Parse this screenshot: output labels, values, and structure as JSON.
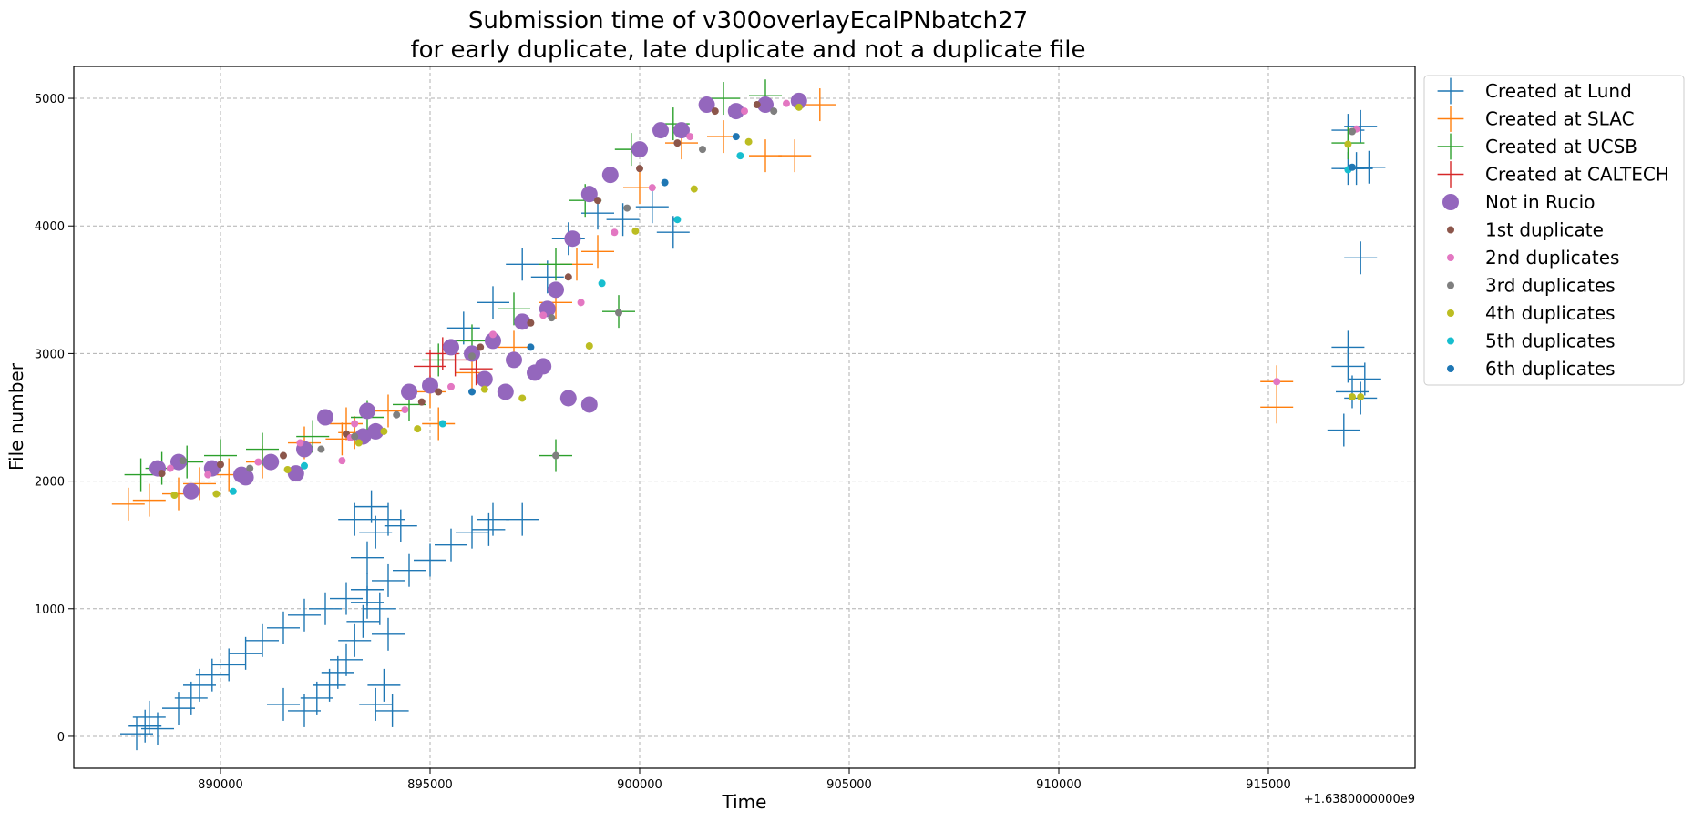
{
  "chart_data": {
    "type": "scatter",
    "title": "Submission time of v300overlayEcalPNbatch27\nfor early duplicate, late duplicate and not a duplicate file",
    "xlabel": "Time",
    "ylabel": "File number",
    "x_offset_label": "+1.6380000000e9",
    "xlim": [
      886500,
      918500
    ],
    "ylim": [
      -250,
      5250
    ],
    "x_ticks": [
      890000,
      895000,
      900000,
      905000,
      910000,
      915000
    ],
    "y_ticks": [
      0,
      1000,
      2000,
      3000,
      4000,
      5000
    ],
    "grid": true,
    "legend_position": "outside-right-top",
    "series": [
      {
        "name": "Created at Lund",
        "marker": "plus",
        "color": "#1f77b4",
        "points": [
          [
            888000,
            20
          ],
          [
            888200,
            80
          ],
          [
            888300,
            150
          ],
          [
            888500,
            60
          ],
          [
            889000,
            220
          ],
          [
            889300,
            300
          ],
          [
            889500,
            400
          ],
          [
            889800,
            480
          ],
          [
            890200,
            560
          ],
          [
            890600,
            650
          ],
          [
            891000,
            750
          ],
          [
            891500,
            850
          ],
          [
            892000,
            950
          ],
          [
            892500,
            1000
          ],
          [
            893000,
            1080
          ],
          [
            893500,
            1150
          ],
          [
            894000,
            1220
          ],
          [
            894500,
            1300
          ],
          [
            895000,
            1380
          ],
          [
            895500,
            1500
          ],
          [
            896000,
            1600
          ],
          [
            896500,
            1700
          ],
          [
            897200,
            1700
          ],
          [
            896400,
            1620
          ],
          [
            891500,
            250
          ],
          [
            892000,
            200
          ],
          [
            892300,
            300
          ],
          [
            892600,
            400
          ],
          [
            892800,
            500
          ],
          [
            893000,
            600
          ],
          [
            893200,
            750
          ],
          [
            893400,
            900
          ],
          [
            893500,
            1050
          ],
          [
            893800,
            1000
          ],
          [
            894000,
            800
          ],
          [
            893900,
            400
          ],
          [
            893700,
            250
          ],
          [
            894100,
            200
          ],
          [
            893200,
            1700
          ],
          [
            893700,
            1600
          ],
          [
            894000,
            1700
          ],
          [
            894300,
            1650
          ],
          [
            893500,
            1400
          ],
          [
            893600,
            1800
          ],
          [
            895800,
            3200
          ],
          [
            896500,
            3400
          ],
          [
            897200,
            3700
          ],
          [
            897800,
            3600
          ],
          [
            898300,
            3900
          ],
          [
            899000,
            4100
          ],
          [
            899600,
            4050
          ],
          [
            900300,
            4150
          ],
          [
            900800,
            3950
          ],
          [
            916900,
            4450
          ],
          [
            917100,
            4450
          ],
          [
            917400,
            4460
          ],
          [
            917200,
            4780
          ],
          [
            916900,
            4750
          ],
          [
            917200,
            3750
          ],
          [
            916900,
            3050
          ],
          [
            917000,
            2700
          ],
          [
            917200,
            2650
          ],
          [
            916800,
            2400
          ],
          [
            916900,
            2900
          ],
          [
            917300,
            2800
          ]
        ]
      },
      {
        "name": "Created at SLAC",
        "marker": "plus",
        "color": "#ff7f0e",
        "points": [
          [
            887800,
            1820
          ],
          [
            888300,
            1850
          ],
          [
            889000,
            1900
          ],
          [
            889500,
            1980
          ],
          [
            890200,
            2050
          ],
          [
            891000,
            2150
          ],
          [
            892000,
            2300
          ],
          [
            893000,
            2450
          ],
          [
            894000,
            2550
          ],
          [
            895000,
            2700
          ],
          [
            896000,
            2850
          ],
          [
            897000,
            3050
          ],
          [
            898000,
            3400
          ],
          [
            898500,
            3700
          ],
          [
            899000,
            3800
          ],
          [
            900000,
            4300
          ],
          [
            901000,
            4650
          ],
          [
            902000,
            4700
          ],
          [
            903000,
            4550
          ],
          [
            903700,
            4550
          ],
          [
            904300,
            4950
          ],
          [
            892900,
            2330
          ],
          [
            893200,
            2380
          ],
          [
            895200,
            2450
          ],
          [
            915200,
            2780
          ],
          [
            915200,
            2580
          ]
        ]
      },
      {
        "name": "Created at UCSB",
        "marker": "plus",
        "color": "#2ca02c",
        "points": [
          [
            888100,
            2050
          ],
          [
            888600,
            2100
          ],
          [
            889200,
            2150
          ],
          [
            890000,
            2200
          ],
          [
            891000,
            2250
          ],
          [
            892200,
            2350
          ],
          [
            893500,
            2500
          ],
          [
            894500,
            2600
          ],
          [
            895200,
            2950
          ],
          [
            896000,
            3100
          ],
          [
            897000,
            3350
          ],
          [
            898000,
            3700
          ],
          [
            898700,
            4200
          ],
          [
            899800,
            4600
          ],
          [
            900800,
            4800
          ],
          [
            902000,
            5000
          ],
          [
            903000,
            5020
          ],
          [
            898000,
            2200
          ],
          [
            899500,
            3330
          ],
          [
            916900,
            4650
          ]
        ]
      },
      {
        "name": "Created at CALTECH",
        "marker": "plus",
        "color": "#d62728",
        "points": [
          [
            895000,
            2900
          ],
          [
            895600,
            2950
          ],
          [
            896100,
            2880
          ],
          [
            895300,
            3000
          ]
        ]
      },
      {
        "name": "Not in Rucio",
        "marker": "circle-large",
        "color": "#9467bd",
        "points": [
          [
            888500,
            2100
          ],
          [
            889000,
            2150
          ],
          [
            889800,
            2100
          ],
          [
            890500,
            2050
          ],
          [
            891200,
            2150
          ],
          [
            892000,
            2250
          ],
          [
            892500,
            2500
          ],
          [
            893500,
            2550
          ],
          [
            894500,
            2700
          ],
          [
            895000,
            2750
          ],
          [
            895500,
            3050
          ],
          [
            896000,
            3000
          ],
          [
            896500,
            3100
          ],
          [
            897200,
            3250
          ],
          [
            897800,
            3350
          ],
          [
            898000,
            3500
          ],
          [
            898400,
            3900
          ],
          [
            898800,
            4250
          ],
          [
            899300,
            4400
          ],
          [
            900000,
            4600
          ],
          [
            900500,
            4750
          ],
          [
            901000,
            4750
          ],
          [
            901600,
            4950
          ],
          [
            902300,
            4900
          ],
          [
            903000,
            4950
          ],
          [
            903800,
            4980
          ],
          [
            896300,
            2800
          ],
          [
            896800,
            2700
          ],
          [
            897500,
            2850
          ],
          [
            898300,
            2650
          ],
          [
            898800,
            2600
          ],
          [
            897700,
            2900
          ],
          [
            897000,
            2950
          ],
          [
            893700,
            2390
          ],
          [
            893400,
            2350
          ],
          [
            889300,
            1920
          ],
          [
            890600,
            2030
          ],
          [
            891800,
            2060
          ]
        ]
      },
      {
        "name": "1st duplicate",
        "marker": "dot",
        "color": "#8c564b",
        "points": [
          [
            888600,
            2060
          ],
          [
            890000,
            2130
          ],
          [
            891500,
            2200
          ],
          [
            893000,
            2370
          ],
          [
            894800,
            2620
          ],
          [
            896200,
            3050
          ],
          [
            897400,
            3240
          ],
          [
            898300,
            3600
          ],
          [
            899000,
            4200
          ],
          [
            900000,
            4450
          ],
          [
            900900,
            4650
          ],
          [
            901800,
            4900
          ],
          [
            902800,
            4950
          ],
          [
            895200,
            2700
          ]
        ]
      },
      {
        "name": "2nd duplicates",
        "marker": "dot",
        "color": "#e377c2",
        "points": [
          [
            888800,
            2100
          ],
          [
            889700,
            2050
          ],
          [
            890900,
            2150
          ],
          [
            891900,
            2300
          ],
          [
            893200,
            2450
          ],
          [
            894400,
            2560
          ],
          [
            895500,
            2740
          ],
          [
            896500,
            3150
          ],
          [
            897700,
            3300
          ],
          [
            898600,
            3400
          ],
          [
            899400,
            3950
          ],
          [
            900300,
            4300
          ],
          [
            901200,
            4700
          ],
          [
            902500,
            4900
          ],
          [
            903500,
            4960
          ],
          [
            893100,
            2340
          ],
          [
            892900,
            2160
          ],
          [
            917100,
            4760
          ],
          [
            915200,
            2780
          ]
        ]
      },
      {
        "name": "3rd duplicates",
        "marker": "dot",
        "color": "#7f7f7f",
        "points": [
          [
            889100,
            2160
          ],
          [
            890700,
            2100
          ],
          [
            892400,
            2250
          ],
          [
            894200,
            2520
          ],
          [
            896000,
            2980
          ],
          [
            897900,
            3280
          ],
          [
            899700,
            4140
          ],
          [
            901500,
            4600
          ],
          [
            903200,
            4900
          ],
          [
            898000,
            2200
          ],
          [
            899500,
            3320
          ],
          [
            893200,
            2350
          ],
          [
            917000,
            4740
          ]
        ]
      },
      {
        "name": "4th duplicates",
        "marker": "dot",
        "color": "#bcbd22",
        "points": [
          [
            888900,
            1890
          ],
          [
            889900,
            1900
          ],
          [
            891600,
            2090
          ],
          [
            893300,
            2300
          ],
          [
            894700,
            2410
          ],
          [
            896300,
            2720
          ],
          [
            897200,
            2650
          ],
          [
            898800,
            3060
          ],
          [
            899900,
            3960
          ],
          [
            901300,
            4290
          ],
          [
            902600,
            4660
          ],
          [
            903800,
            4930
          ],
          [
            893900,
            2390
          ],
          [
            916900,
            4640
          ],
          [
            917000,
            2660
          ],
          [
            917200,
            2660
          ]
        ]
      },
      {
        "name": "5th duplicates",
        "marker": "dot",
        "color": "#17becf",
        "points": [
          [
            890300,
            1920
          ],
          [
            892000,
            2120
          ],
          [
            895300,
            2450
          ],
          [
            899100,
            3550
          ],
          [
            900900,
            4050
          ],
          [
            902400,
            4550
          ],
          [
            916900,
            4440
          ]
        ]
      },
      {
        "name": "6th duplicates",
        "marker": "dot",
        "color": "#1f77b4",
        "points": [
          [
            896000,
            2700
          ],
          [
            897400,
            3050
          ],
          [
            900600,
            4340
          ],
          [
            902300,
            4700
          ],
          [
            917000,
            4460
          ]
        ]
      }
    ]
  }
}
